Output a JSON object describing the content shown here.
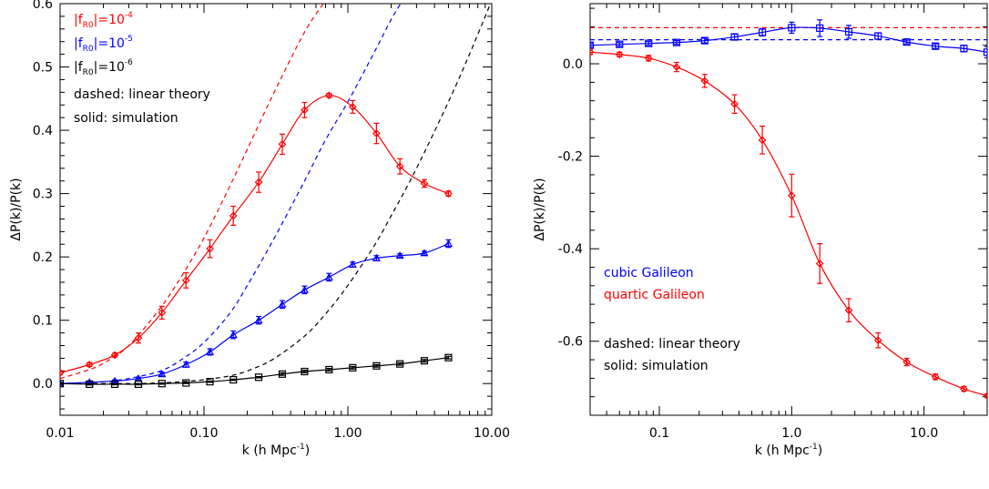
{
  "chart_data": [
    {
      "type": "line",
      "xlabel": "k (h Mpc",
      "xlabel_sup": "-1",
      "xlabel_close": ")",
      "ylabel": "ΔP(k)/P(k)",
      "x_scale": "log",
      "xlim": [
        0.01,
        10.0
      ],
      "ylim": [
        -0.05,
        0.6
      ],
      "x_ticks": [
        0.01,
        0.1,
        1.0,
        10.0
      ],
      "x_tick_labels": [
        "0.01",
        "0.10",
        "1.00",
        "10.00"
      ],
      "y_ticks": [
        0.0,
        0.1,
        0.2,
        0.3,
        0.4,
        0.5,
        0.6
      ],
      "y_tick_labels": [
        "0.0",
        "0.1",
        "0.2",
        "0.3",
        "0.4",
        "0.5",
        "0.6"
      ],
      "legend": {
        "placement": "top-left",
        "entries": [
          {
            "text_pre": "|f",
            "text_sub": "R0",
            "text_mid": "|=10",
            "text_sup": "-4",
            "color": "#ff0000"
          },
          {
            "text_pre": "|f",
            "text_sub": "R0",
            "text_mid": "|=10",
            "text_sup": "-5",
            "color": "#0000ff"
          },
          {
            "text_pre": "|f",
            "text_sub": "R0",
            "text_mid": "|=10",
            "text_sup": "-6",
            "color": "#000000"
          }
        ],
        "notes": [
          "dashed: linear theory",
          "solid: simulation"
        ]
      },
      "series": [
        {
          "color": "#ff0000",
          "marker": "diamond",
          "style": "solid",
          "x": [
            0.01,
            0.016,
            0.024,
            0.035,
            0.051,
            0.075,
            0.11,
            0.16,
            0.24,
            0.35,
            0.5,
            0.74,
            1.08,
            1.58,
            2.3,
            3.4,
            5.0
          ],
          "y": [
            0.017,
            0.03,
            0.045,
            0.072,
            0.112,
            0.163,
            0.213,
            0.265,
            0.318,
            0.378,
            0.432,
            0.455,
            0.437,
            0.395,
            0.343,
            0.316,
            0.3
          ],
          "err": [
            0.003,
            0.003,
            0.003,
            0.008,
            0.01,
            0.012,
            0.014,
            0.015,
            0.016,
            0.016,
            0.012,
            0.003,
            0.01,
            0.016,
            0.012,
            0.006,
            0.004
          ]
        },
        {
          "color": "#0000ff",
          "marker": "triangle",
          "style": "solid",
          "x": [
            0.01,
            0.016,
            0.024,
            0.035,
            0.051,
            0.075,
            0.11,
            0.16,
            0.24,
            0.35,
            0.5,
            0.74,
            1.08,
            1.58,
            2.3,
            3.4,
            5.0
          ],
          "y": [
            0.0,
            0.002,
            0.004,
            0.008,
            0.015,
            0.03,
            0.05,
            0.077,
            0.1,
            0.125,
            0.148,
            0.168,
            0.188,
            0.198,
            0.202,
            0.206,
            0.221
          ],
          "err": [
            0.002,
            0.002,
            0.002,
            0.002,
            0.003,
            0.004,
            0.005,
            0.006,
            0.006,
            0.006,
            0.006,
            0.006,
            0.004,
            0.004,
            0.003,
            0.003,
            0.006
          ]
        },
        {
          "color": "#000000",
          "marker": "square",
          "style": "solid",
          "x": [
            0.01,
            0.016,
            0.024,
            0.035,
            0.051,
            0.075,
            0.11,
            0.16,
            0.24,
            0.35,
            0.5,
            0.74,
            1.08,
            1.58,
            2.3,
            3.4,
            5.0
          ],
          "y": [
            0.0,
            -0.001,
            -0.001,
            -0.001,
            0.0,
            0.001,
            0.003,
            0.006,
            0.01,
            0.015,
            0.019,
            0.022,
            0.025,
            0.028,
            0.031,
            0.036,
            0.041
          ],
          "err": [
            0.001,
            0.001,
            0.001,
            0.001,
            0.001,
            0.001,
            0.001,
            0.001,
            0.001,
            0.002,
            0.002,
            0.002,
            0.002,
            0.002,
            0.002,
            0.002,
            0.002
          ]
        },
        {
          "color": "#ff0000",
          "marker": "none",
          "style": "dashed",
          "x": [
            0.01,
            0.015,
            0.02,
            0.03,
            0.05,
            0.07,
            0.1,
            0.15,
            0.2,
            0.3,
            0.5,
            0.7
          ],
          "y": [
            0.008,
            0.02,
            0.032,
            0.06,
            0.12,
            0.17,
            0.23,
            0.31,
            0.37,
            0.455,
            0.555,
            0.605
          ]
        },
        {
          "color": "#0000ff",
          "marker": "none",
          "style": "dashed",
          "x": [
            0.01,
            0.02,
            0.03,
            0.05,
            0.07,
            0.1,
            0.15,
            0.2,
            0.3,
            0.5,
            0.7,
            1.0,
            1.5,
            2.0,
            2.4
          ],
          "y": [
            0.0,
            0.003,
            0.008,
            0.02,
            0.038,
            0.065,
            0.11,
            0.155,
            0.225,
            0.32,
            0.385,
            0.445,
            0.52,
            0.575,
            0.605
          ]
        },
        {
          "color": "#000000",
          "marker": "none",
          "style": "dashed",
          "x": [
            0.01,
            0.03,
            0.05,
            0.07,
            0.1,
            0.15,
            0.2,
            0.3,
            0.5,
            0.7,
            1.0,
            1.5,
            2.0,
            3.0,
            5.0,
            7.0,
            10.0
          ],
          "y": [
            0.0,
            0.0,
            0.001,
            0.003,
            0.006,
            0.012,
            0.02,
            0.038,
            0.075,
            0.11,
            0.155,
            0.215,
            0.265,
            0.34,
            0.445,
            0.52,
            0.605
          ]
        }
      ]
    },
    {
      "type": "line",
      "xlabel": "k (h Mpc",
      "xlabel_sup": "-1",
      "xlabel_close": ")",
      "ylabel": "ΔP(k)/P(k)",
      "x_scale": "log",
      "xlim": [
        0.03,
        30.0
      ],
      "ylim": [
        -0.76,
        0.13
      ],
      "x_ticks": [
        0.1,
        1.0,
        10.0
      ],
      "x_tick_labels": [
        "0.1",
        "1.0",
        "10.0"
      ],
      "y_ticks": [
        0.0,
        -0.2,
        -0.4,
        -0.6
      ],
      "y_tick_labels": [
        "0.0",
        "-0.2",
        "-0.4",
        "-0.6"
      ],
      "legend": {
        "placement": "left",
        "entries": [
          {
            "text": "cubic Galileon",
            "color": "#0000ff"
          },
          {
            "text": "quartic Galileon",
            "color": "#ff0000"
          }
        ],
        "notes": [
          "dashed: linear theory",
          "solid: simulation"
        ]
      },
      "series": [
        {
          "color": "#0000ff",
          "marker": "square",
          "style": "solid",
          "x": [
            0.03,
            0.05,
            0.083,
            0.135,
            0.22,
            0.37,
            0.6,
            1.0,
            1.63,
            2.7,
            4.5,
            7.4,
            12.2,
            20.0,
            30.0
          ],
          "y": [
            0.04,
            0.042,
            0.044,
            0.046,
            0.05,
            0.058,
            0.068,
            0.078,
            0.077,
            0.069,
            0.06,
            0.047,
            0.038,
            0.033,
            0.025
          ],
          "err": [
            0.004,
            0.004,
            0.004,
            0.004,
            0.005,
            0.006,
            0.008,
            0.012,
            0.018,
            0.014,
            0.007,
            0.004,
            0.005,
            0.007,
            0.012
          ]
        },
        {
          "color": "#ff0000",
          "marker": "diamond",
          "style": "solid",
          "x": [
            0.03,
            0.05,
            0.083,
            0.135,
            0.22,
            0.37,
            0.6,
            1.0,
            1.63,
            2.7,
            4.5,
            7.4,
            12.2,
            20.0,
            30.0
          ],
          "y": [
            0.025,
            0.02,
            0.012,
            -0.007,
            -0.037,
            -0.087,
            -0.165,
            -0.285,
            -0.432,
            -0.533,
            -0.598,
            -0.645,
            -0.677,
            -0.703,
            -0.718
          ],
          "err": [
            0.005,
            0.005,
            0.006,
            0.01,
            0.014,
            0.02,
            0.03,
            0.046,
            0.043,
            0.025,
            0.016,
            0.008,
            0.006,
            0.005,
            0.004
          ]
        },
        {
          "color": "#ff0000",
          "marker": "none",
          "style": "dashed",
          "x": [
            0.03,
            30.0
          ],
          "y": [
            0.078,
            0.078
          ]
        },
        {
          "color": "#0000ff",
          "marker": "none",
          "style": "dashed",
          "x": [
            0.03,
            30.0
          ],
          "y": [
            0.052,
            0.052
          ]
        }
      ]
    }
  ]
}
